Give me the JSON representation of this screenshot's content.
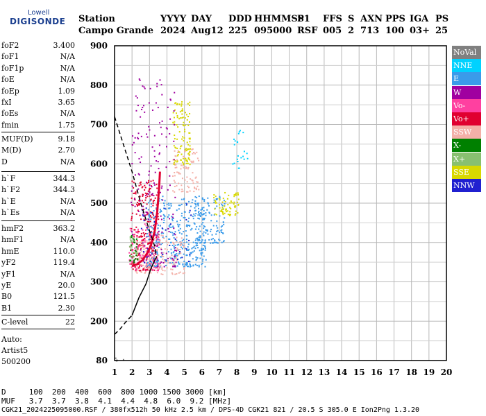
{
  "logo": {
    "top": "Lowell",
    "main": "DIGISONDE"
  },
  "header": {
    "labels": [
      "Station",
      "YYYY",
      "DAY",
      "DDD",
      "HHMMSS",
      "P1",
      "FFS",
      "S",
      "AXN",
      "PPS",
      "IGA",
      "PS"
    ],
    "values": [
      "Campo Grande",
      "2024",
      "Aug12",
      "225",
      "095000",
      "RSF",
      "005",
      "2",
      "713",
      "100",
      "03+",
      "25"
    ]
  },
  "params": {
    "group1": [
      {
        "name": "foF2",
        "value": "3.400"
      },
      {
        "name": "foF1",
        "value": "N/A"
      },
      {
        "name": "foF1p",
        "value": "N/A"
      },
      {
        "name": "foE",
        "value": "N/A"
      },
      {
        "name": "foEp",
        "value": "1.09"
      },
      {
        "name": "fxI",
        "value": "3.65"
      },
      {
        "name": "foEs",
        "value": "N/A"
      },
      {
        "name": "fmin",
        "value": "1.75"
      }
    ],
    "group2": [
      {
        "name": "MUF(D)",
        "value": "9.18"
      },
      {
        "name": "M(D)",
        "value": "2.70"
      },
      {
        "name": "D",
        "value": "N/A"
      }
    ],
    "group3": [
      {
        "name": "h`F",
        "value": "344.3"
      },
      {
        "name": "h`F2",
        "value": "344.3"
      },
      {
        "name": "h`E",
        "value": "N/A"
      },
      {
        "name": "h`Es",
        "value": "N/A"
      }
    ],
    "group4": [
      {
        "name": "hmF2",
        "value": "363.2"
      },
      {
        "name": "hmF1",
        "value": "N/A"
      },
      {
        "name": "hmE",
        "value": "110.0"
      },
      {
        "name": "yF2",
        "value": "119.4"
      },
      {
        "name": "yF1",
        "value": "N/A"
      },
      {
        "name": "yE",
        "value": "20.0"
      },
      {
        "name": "B0",
        "value": "121.5"
      },
      {
        "name": "B1",
        "value": "2.30"
      }
    ],
    "group5": [
      {
        "name": "C-level",
        "value": "22"
      }
    ]
  },
  "scaler": {
    "line1": "Auto:",
    "line2": "Artist5",
    "line3": "500200"
  },
  "legend": [
    {
      "label": "NoVal",
      "color": "#808080"
    },
    {
      "label": "NNE",
      "color": "#00d2ff"
    },
    {
      "label": "E",
      "color": "#3a9bea"
    },
    {
      "label": "W",
      "color": "#a000a0"
    },
    {
      "label": "Vo-",
      "color": "#ff40a0"
    },
    {
      "label": "Vo+",
      "color": "#e00030"
    },
    {
      "label": "SSW",
      "color": "#f4b0a8"
    },
    {
      "label": "X-",
      "color": "#008000"
    },
    {
      "label": "X+",
      "color": "#88c070"
    },
    {
      "label": "SSE",
      "color": "#d8d800"
    },
    {
      "label": "NNW",
      "color": "#2020d0"
    }
  ],
  "bottom": {
    "d_row": "D     100  200  400  600  800 1000 1500 3000 [km]",
    "muf_row": "MUF   3.7  3.7  3.8  4.1  4.4  4.8  6.0  9.2 [MHz]",
    "footer": "CGK21_2024225095000.RSF / 380fx512h 50 kHz 2.5 km / DPS-4D CGK21 821 / 20.5 S 305.0 E Ion2Png 1.3.20"
  },
  "chart_data": {
    "type": "scatter",
    "title": "",
    "xlabel": "",
    "ylabel": "",
    "xlim": [
      1,
      20
    ],
    "ylim": [
      80,
      900
    ],
    "x_ticks": [
      1,
      2,
      3,
      4,
      5,
      6,
      7,
      8,
      9,
      10,
      11,
      12,
      13,
      14,
      15,
      16,
      17,
      18,
      19,
      20
    ],
    "y_ticks": [
      80,
      200,
      300,
      400,
      500,
      600,
      700,
      800,
      900
    ],
    "grid": true,
    "legend_placement": "right",
    "ionogram_clusters": [
      {
        "series": "Vo+",
        "x_range": [
          1.9,
          3.5
        ],
        "y_range": [
          330,
          560
        ],
        "count": 260
      },
      {
        "series": "Vo-",
        "x_range": [
          1.8,
          3.6
        ],
        "y_range": [
          330,
          450
        ],
        "count": 120
      },
      {
        "series": "E",
        "x_range": [
          2.8,
          6.2
        ],
        "y_range": [
          340,
          520
        ],
        "count": 380
      },
      {
        "series": "E",
        "x_range": [
          5.5,
          7.3
        ],
        "y_range": [
          400,
          520
        ],
        "count": 120
      },
      {
        "series": "SSW",
        "x_range": [
          2.2,
          5.0
        ],
        "y_range": [
          320,
          420
        ],
        "count": 160
      },
      {
        "series": "SSW",
        "x_range": [
          4.3,
          5.8
        ],
        "y_range": [
          530,
          640
        ],
        "count": 90
      },
      {
        "series": "SSE",
        "x_range": [
          4.3,
          5.3
        ],
        "y_range": [
          600,
          760
        ],
        "count": 110
      },
      {
        "series": "SSE",
        "x_range": [
          6.6,
          8.1
        ],
        "y_range": [
          470,
          530
        ],
        "count": 70
      },
      {
        "series": "W",
        "x_range": [
          1.9,
          4.5
        ],
        "y_range": [
          340,
          820
        ],
        "count": 170
      },
      {
        "series": "NNE",
        "x_range": [
          7.5,
          8.6
        ],
        "y_range": [
          590,
          690
        ],
        "count": 22
      },
      {
        "series": "NNW",
        "x_range": [
          2.5,
          5.5
        ],
        "y_range": [
          350,
          500
        ],
        "count": 40
      },
      {
        "series": "X-",
        "x_range": [
          1.8,
          2.3
        ],
        "y_range": [
          350,
          420
        ],
        "count": 25
      },
      {
        "series": "X+",
        "x_range": [
          1.8,
          2.3
        ],
        "y_range": [
          360,
          420
        ],
        "count": 20
      },
      {
        "series": "NoVal",
        "x_range": [
          1.0,
          1.5
        ],
        "y_range": [
          80,
          90
        ],
        "count": 6
      }
    ],
    "profile_solid": [
      [
        2.0,
        215
      ],
      [
        2.4,
        260
      ],
      [
        2.8,
        295
      ],
      [
        3.05,
        330
      ],
      [
        3.2,
        345
      ],
      [
        3.3,
        355
      ],
      [
        3.4,
        363
      ]
    ],
    "profile_dashed_lower": [
      [
        1.0,
        160
      ],
      [
        1.3,
        175
      ],
      [
        1.6,
        195
      ],
      [
        2.0,
        215
      ]
    ],
    "profile_dashed_upper": [
      [
        1.0,
        720
      ],
      [
        1.5,
        650
      ],
      [
        2.0,
        580
      ],
      [
        2.5,
        500
      ],
      [
        3.0,
        430
      ],
      [
        3.3,
        390
      ],
      [
        3.4,
        363
      ]
    ],
    "trace_curve": [
      [
        2.0,
        340
      ],
      [
        2.3,
        345
      ],
      [
        2.6,
        355
      ],
      [
        2.9,
        375
      ],
      [
        3.1,
        395
      ],
      [
        3.3,
        430
      ],
      [
        3.45,
        480
      ],
      [
        3.55,
        540
      ],
      [
        3.6,
        580
      ]
    ]
  }
}
